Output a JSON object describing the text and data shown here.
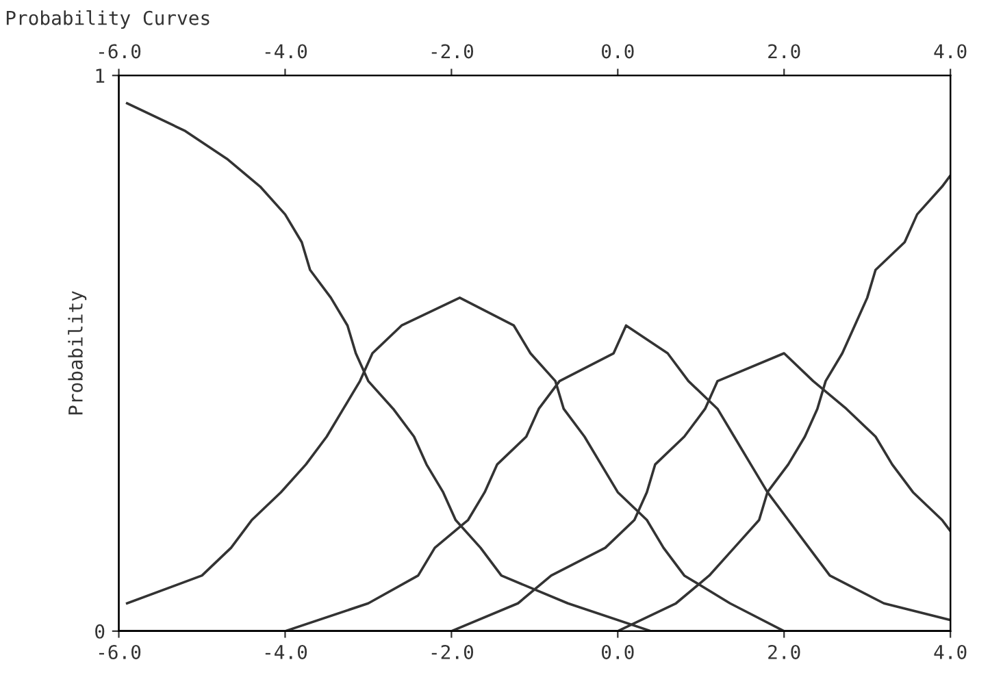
{
  "chart_data": {
    "type": "line",
    "title": "Probability Curves",
    "ylabel": "Probability",
    "series": [
      {
        "color": "#333333",
        "x": [
          -5.9,
          -5.2,
          -4.7,
          -4.3,
          -4.0,
          -3.8,
          -3.7,
          -3.45,
          -3.25,
          -3.15,
          -3.0,
          -2.7,
          -2.45,
          -2.3,
          -2.1,
          -1.95,
          -1.65,
          -1.4,
          -0.6,
          0.4,
          4.0
        ],
        "values": [
          0.95,
          0.9,
          0.85,
          0.8,
          0.75,
          0.7,
          0.65,
          0.6,
          0.55,
          0.5,
          0.45,
          0.4,
          0.35,
          0.3,
          0.25,
          0.2,
          0.15,
          0.1,
          0.05,
          0,
          0
        ]
      },
      {
        "color": "#333333",
        "x": [
          -5.9,
          -5.0,
          -4.65,
          -4.4,
          -4.05,
          -3.75,
          -3.5,
          -3.3,
          -3.1,
          -2.95,
          -2.6,
          -1.9,
          -1.25,
          -1.05,
          -0.75,
          -0.65,
          -0.4,
          -0.2,
          0.0,
          0.35,
          0.55,
          0.8,
          1.35,
          2.0,
          4.0
        ],
        "values": [
          0.05,
          0.1,
          0.15,
          0.2,
          0.25,
          0.3,
          0.35,
          0.4,
          0.45,
          0.5,
          0.55,
          0.6,
          0.55,
          0.5,
          0.45,
          0.4,
          0.35,
          0.3,
          0.25,
          0.2,
          0.15,
          0.1,
          0.05,
          0,
          0
        ]
      },
      {
        "color": "#333333",
        "x": [
          -6.0,
          -4.0,
          -3.0,
          -2.4,
          -2.2,
          -1.8,
          -1.6,
          -1.45,
          -1.1,
          -0.95,
          -0.7,
          -0.05,
          0.1,
          0.6,
          0.85,
          1.2,
          1.4,
          1.6,
          1.8,
          2.05,
          2.3,
          2.55,
          3.2,
          4.0
        ],
        "values": [
          0,
          0,
          0.05,
          0.1,
          0.15,
          0.2,
          0.25,
          0.3,
          0.35,
          0.4,
          0.45,
          0.5,
          0.55,
          0.5,
          0.45,
          0.4,
          0.35,
          0.3,
          0.25,
          0.2,
          0.15,
          0.1,
          0.05,
          0.02
        ]
      },
      {
        "color": "#333333",
        "x": [
          -6.0,
          -2.0,
          -1.2,
          -0.8,
          -0.15,
          0.2,
          0.35,
          0.45,
          0.8,
          1.05,
          1.2,
          2.0,
          2.35,
          2.75,
          3.1,
          3.3,
          3.55,
          3.9,
          4.0
        ],
        "values": [
          0,
          0,
          0.05,
          0.1,
          0.15,
          0.2,
          0.25,
          0.3,
          0.35,
          0.4,
          0.45,
          0.5,
          0.45,
          0.4,
          0.35,
          0.3,
          0.25,
          0.2,
          0.18
        ]
      },
      {
        "color": "#333333",
        "x": [
          -6.0,
          0.0,
          0.7,
          1.1,
          1.4,
          1.7,
          1.8,
          2.05,
          2.25,
          2.4,
          2.5,
          2.7,
          2.85,
          3.0,
          3.1,
          3.45,
          3.6,
          3.9,
          4.0
        ],
        "values": [
          0,
          0,
          0.05,
          0.1,
          0.15,
          0.2,
          0.25,
          0.3,
          0.35,
          0.4,
          0.45,
          0.5,
          0.55,
          0.6,
          0.65,
          0.7,
          0.75,
          0.8,
          0.82
        ]
      }
    ],
    "xlim": [
      -6.0,
      4.0
    ],
    "xticks": [
      {
        "value": -6,
        "label": "-6.0"
      },
      {
        "value": -4,
        "label": "-4.0"
      },
      {
        "value": -2,
        "label": "-2.0"
      },
      {
        "value": 0,
        "label": "0.0"
      },
      {
        "value": 2,
        "label": "2.0"
      },
      {
        "value": 4,
        "label": "4.0"
      }
    ],
    "x2lim": [
      -6.0,
      4.0
    ],
    "x2ticks": [
      {
        "value": -6,
        "label": "-6.0"
      },
      {
        "value": -4,
        "label": "-4.0"
      },
      {
        "value": -2,
        "label": "-2.0"
      },
      {
        "value": 0,
        "label": "0.0"
      },
      {
        "value": 2,
        "label": "2.0"
      },
      {
        "value": 4,
        "label": "4.0"
      }
    ],
    "ylim": [
      0,
      1
    ],
    "yticks": [
      0,
      1
    ],
    "grid": false,
    "legend": false,
    "marker": "none",
    "line_style": "solid"
  }
}
